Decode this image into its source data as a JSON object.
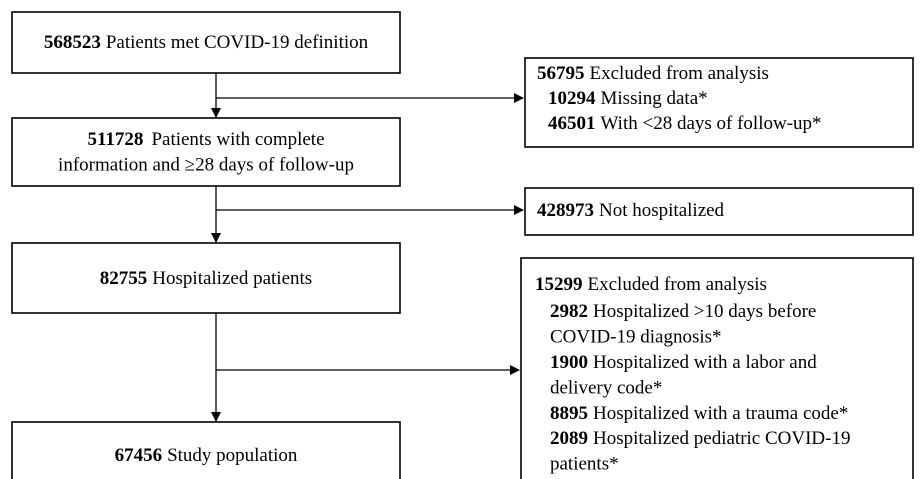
{
  "nodes": [
    {
      "count": 568523,
      "label": "Patients met COVID-19 definition"
    },
    {
      "count": 511728,
      "lines": [
        "Patients with complete",
        "information and ≥28 days of follow-up"
      ]
    },
    {
      "count": 82755,
      "label": "Hospitalized patients"
    },
    {
      "count": 67456,
      "label": "Study population"
    }
  ],
  "exclusions": [
    {
      "count": 56795,
      "label": "Excluded from analysis",
      "items": [
        {
          "count": 10294,
          "lines": [
            "Missing data*"
          ]
        },
        {
          "count": 46501,
          "lines": [
            "With <28 days of follow-up*"
          ]
        }
      ]
    },
    {
      "count": 428973,
      "label": "Not hospitalized"
    },
    {
      "count": 15299,
      "label": "Excluded from analysis",
      "items": [
        {
          "count": 2982,
          "lines": [
            "Hospitalized >10 days before",
            "COVID-19 diagnosis*"
          ]
        },
        {
          "count": 1900,
          "lines": [
            "Hospitalized with a labor and",
            "delivery code*"
          ]
        },
        {
          "count": 8895,
          "lines": [
            "Hospitalized with a trauma code*"
          ]
        },
        {
          "count": 2089,
          "lines": [
            "Hospitalized pediatric COVID-19",
            "patients*"
          ]
        }
      ]
    }
  ]
}
